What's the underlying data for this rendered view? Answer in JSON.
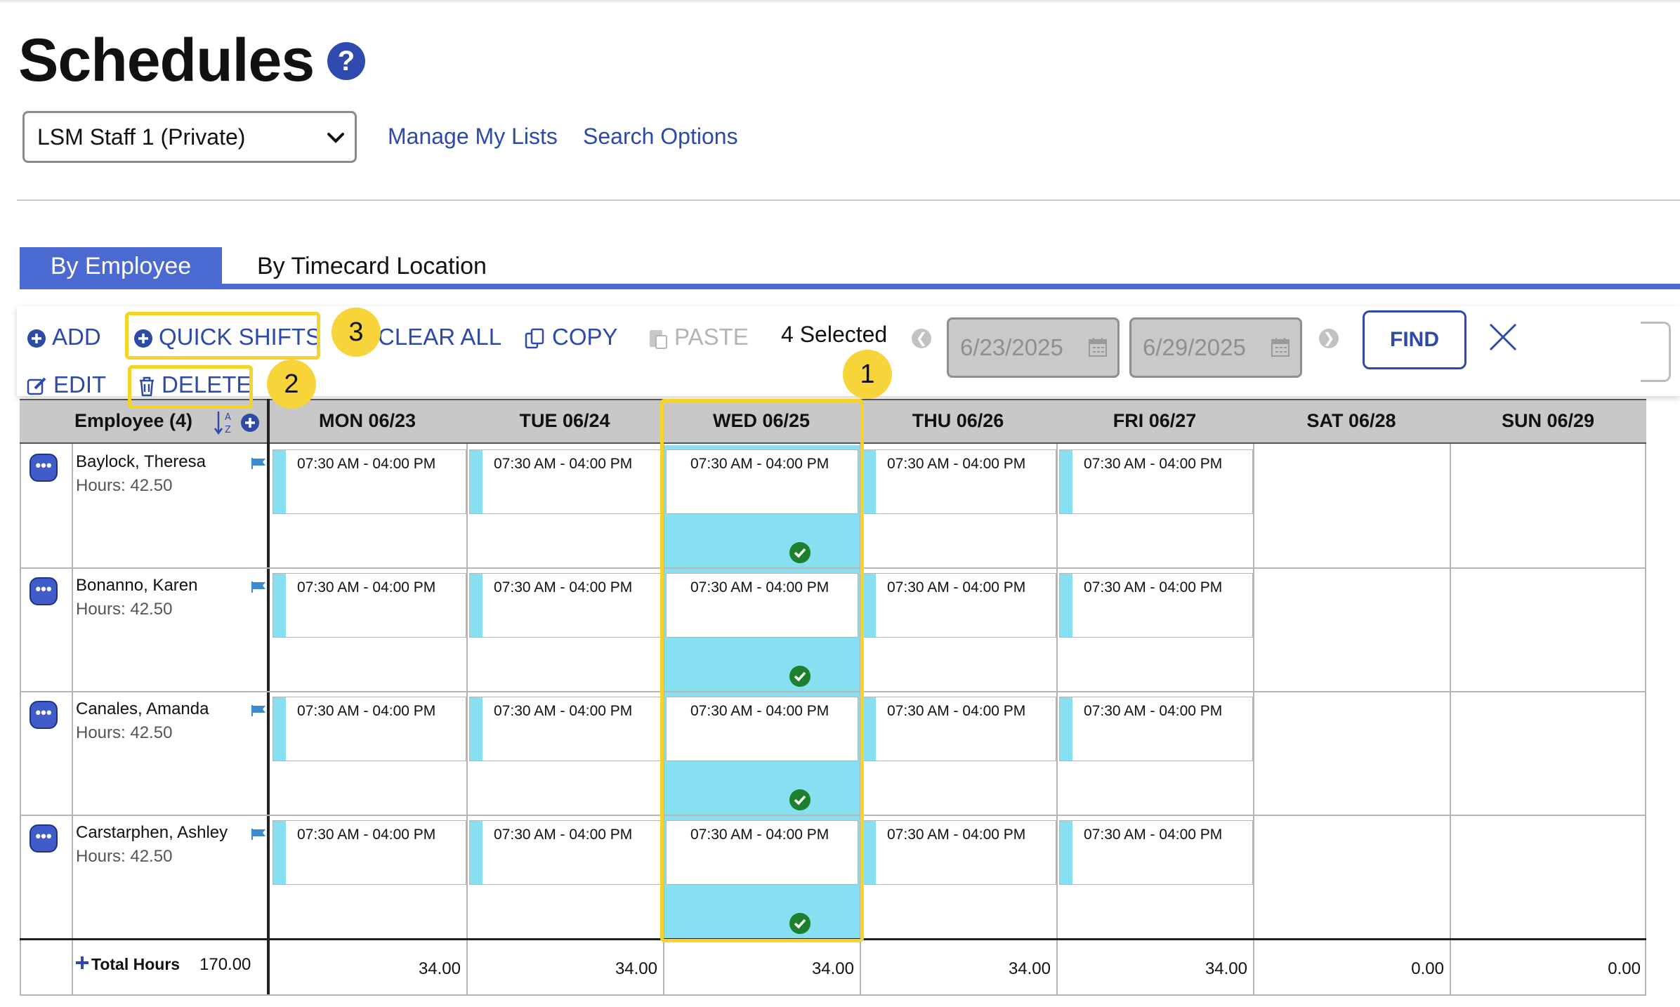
{
  "page": {
    "title": "Schedules"
  },
  "list_select": {
    "value": "LSM Staff 1 (Private)"
  },
  "links": {
    "manage_lists": "Manage My Lists",
    "search_options": "Search Options"
  },
  "tabs": [
    {
      "label": "By Employee",
      "active": true
    },
    {
      "label": "By Timecard Location",
      "active": false
    }
  ],
  "toolbar": {
    "add": "ADD",
    "quick_shifts": "QUICK SHIFTS",
    "clear_all": "CLEAR ALL",
    "copy": "COPY",
    "paste": "PASTE",
    "selected": "4 Selected",
    "start_date": "6/23/2025",
    "end_date": "6/29/2025",
    "find": "FIND",
    "edit": "EDIT",
    "delete": "DELETE"
  },
  "grid": {
    "employee_header": "Employee (4)",
    "days": [
      "MON 06/23",
      "TUE 06/24",
      "WED 06/25",
      "THU 06/26",
      "FRI 06/27",
      "SAT 06/28",
      "SUN 06/29"
    ],
    "employees": [
      {
        "name": "Baylock, Theresa",
        "hours": "Hours: 42.50"
      },
      {
        "name": "Bonanno, Karen",
        "hours": "Hours: 42.50"
      },
      {
        "name": "Canales, Amanda",
        "hours": "Hours: 42.50"
      },
      {
        "name": "Carstarphen, Ashley",
        "hours": "Hours: 42.50"
      }
    ],
    "shift_text": "07:30 AM - 04:00 PM",
    "total_label": "Total Hours",
    "total_value": "170.00",
    "day_totals": [
      "34.00",
      "34.00",
      "34.00",
      "34.00",
      "34.00",
      "0.00",
      "0.00"
    ]
  },
  "callouts": {
    "one": "1",
    "two": "2",
    "three": "3"
  },
  "colors": {
    "accent": "#4a6ad1",
    "link": "#2c4aa6",
    "highlight": "#f5d32b",
    "shift": "#87dff2",
    "check": "#1e7f2d"
  }
}
